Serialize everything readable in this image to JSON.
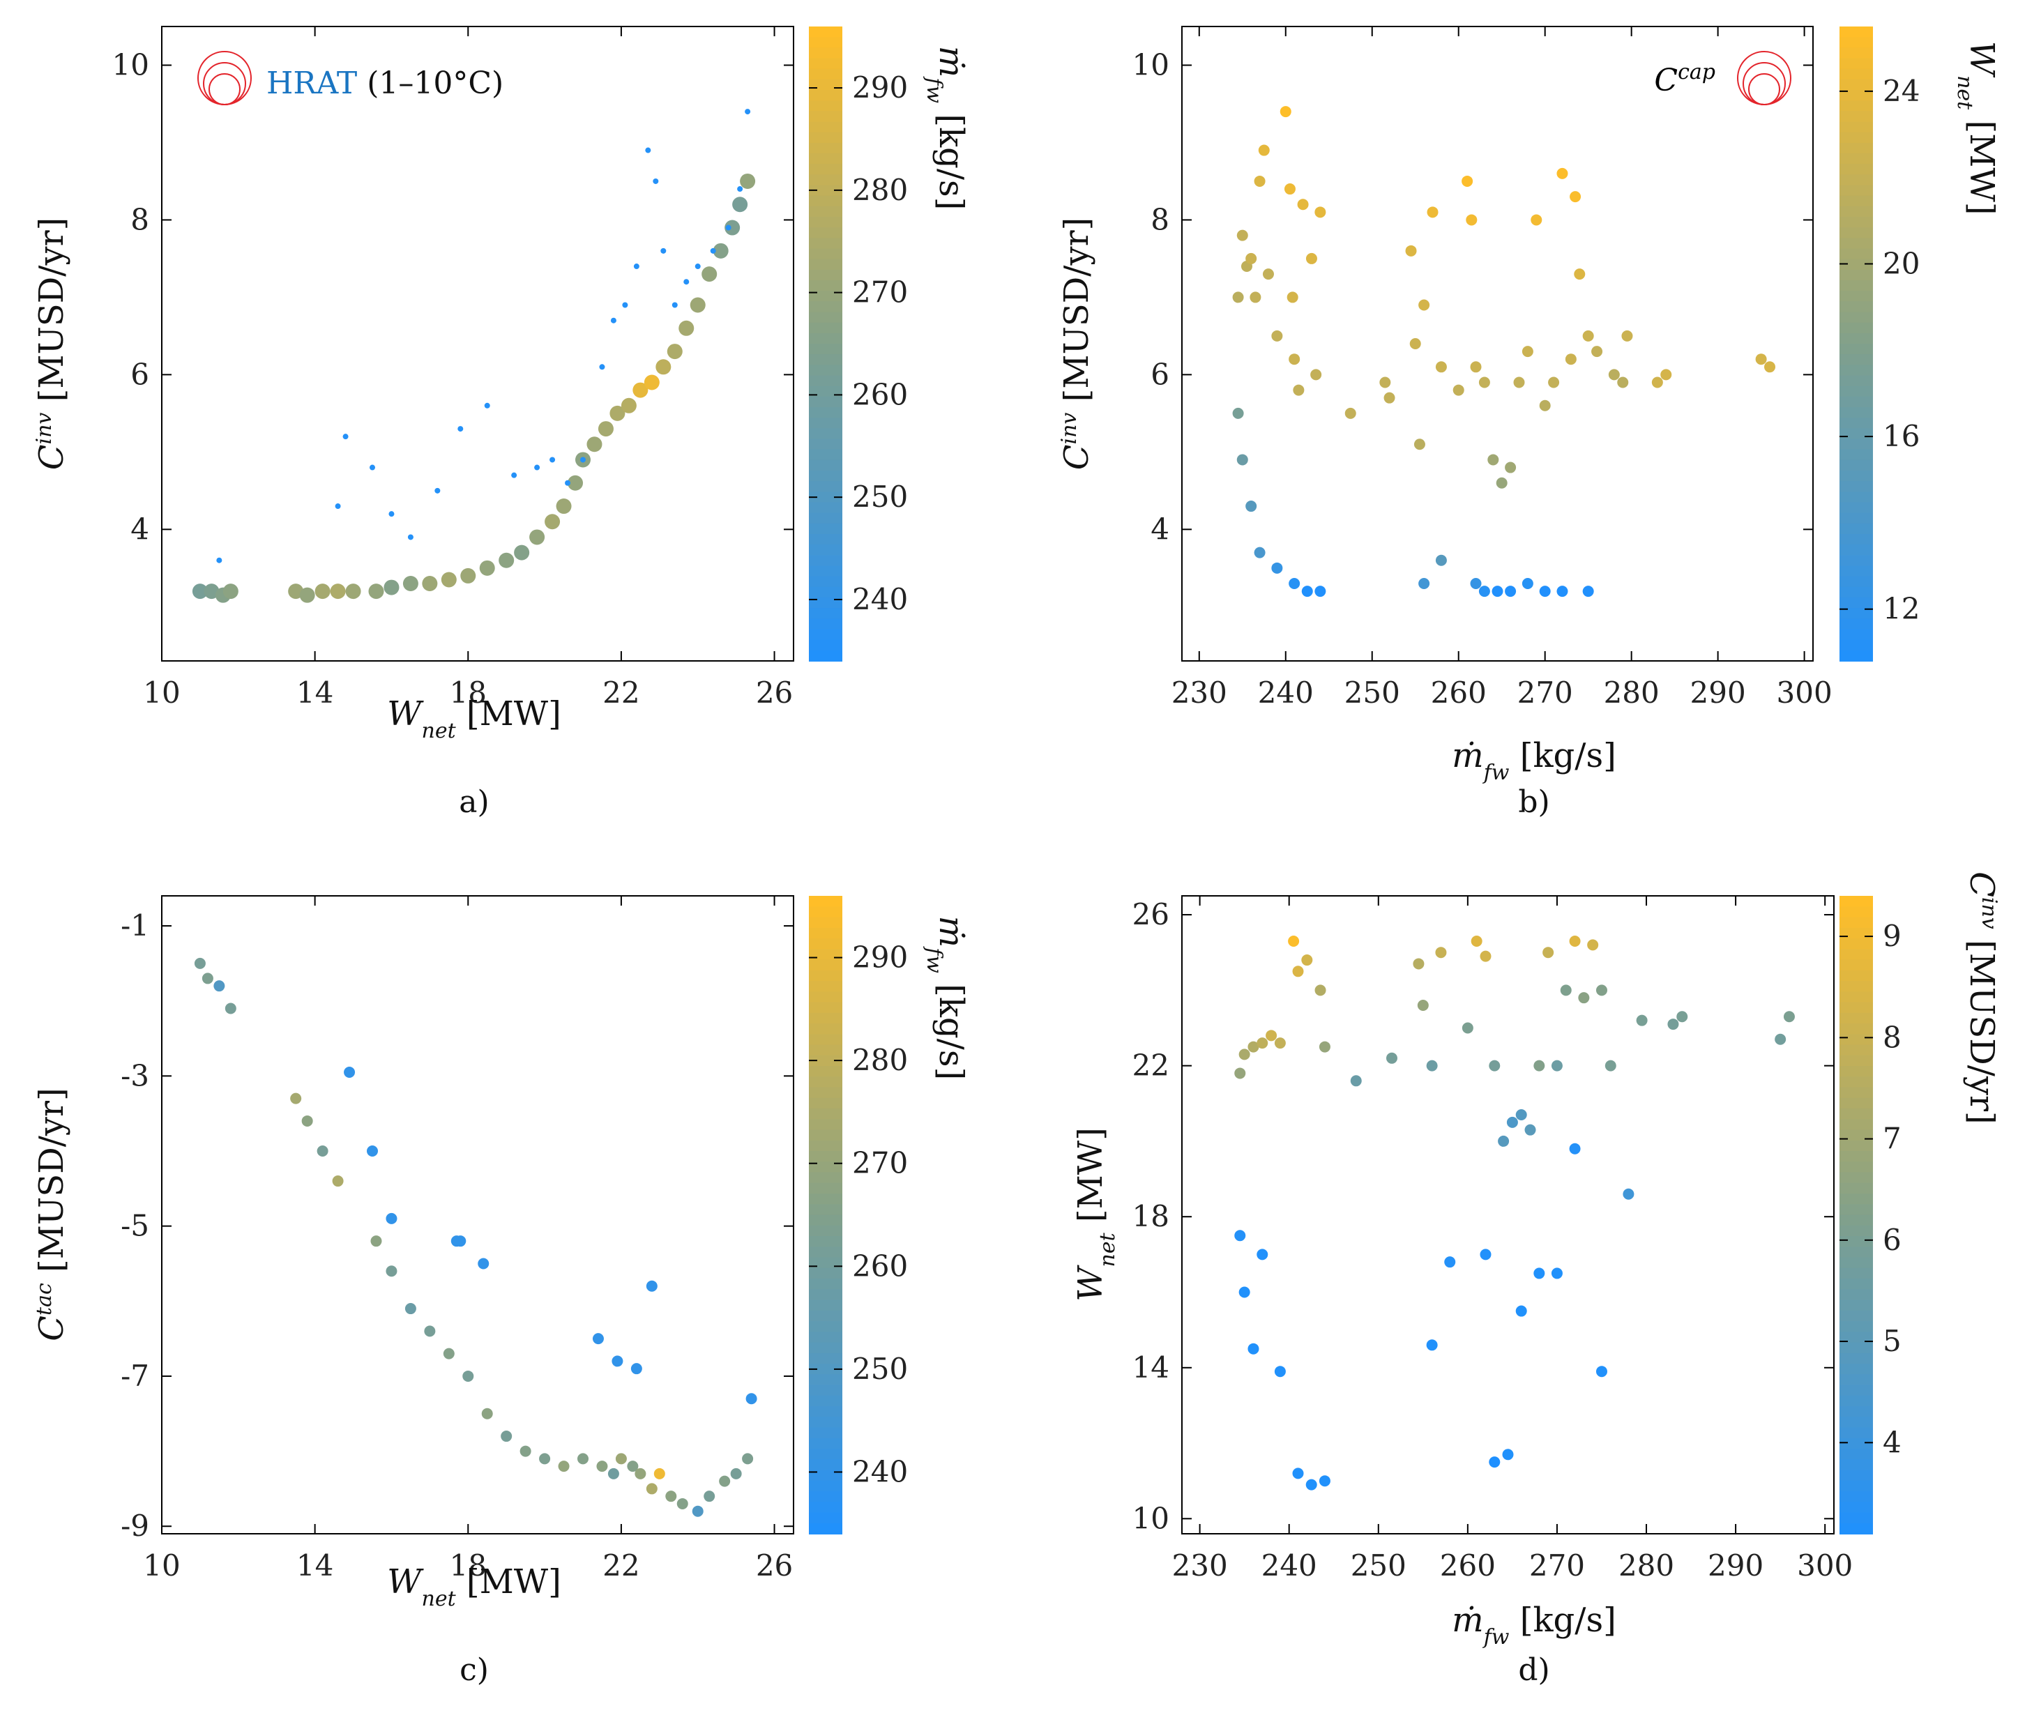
{
  "chart_data": [
    {
      "id": "a",
      "type": "scatter",
      "panel_label": "a)",
      "xlabel": {
        "main": "W",
        "sub": "net",
        "unit": " [MW]"
      },
      "ylabel": {
        "main": "C",
        "sup": "inv",
        "unit": " [MUSD/yr]"
      },
      "xlim": [
        10,
        26.5
      ],
      "ylim": [
        2.3,
        10.5
      ],
      "xticks": [
        10,
        14,
        18,
        22,
        26
      ],
      "yticks": [
        4,
        6,
        8,
        10
      ],
      "colorbar": {
        "label_main": "ṁ",
        "label_sub": "fw",
        "label_unit": " [kg/s]",
        "range": [
          234,
          296
        ],
        "ticks": [
          240,
          250,
          260,
          270,
          280,
          290
        ]
      },
      "annotation": {
        "name": "HRAT",
        "rest": " (1–10°C)",
        "color": "#1a75c2"
      },
      "series": [
        {
          "name": "main",
          "size": "large",
          "x": [
            11.0,
            11.3,
            11.6,
            11.8,
            13.5,
            13.8,
            14.2,
            14.6,
            15.0,
            15.6,
            16.0,
            16.5,
            17.0,
            17.5,
            18.0,
            18.5,
            19.0,
            19.4,
            19.8,
            20.2,
            20.5,
            20.8,
            21.0,
            21.3,
            21.6,
            21.9,
            22.2,
            22.5,
            22.8,
            23.1,
            23.4,
            23.7,
            24.0,
            24.3,
            24.6,
            24.9,
            25.1,
            25.3
          ],
          "y": [
            3.2,
            3.2,
            3.15,
            3.2,
            3.2,
            3.15,
            3.2,
            3.2,
            3.2,
            3.2,
            3.25,
            3.3,
            3.3,
            3.35,
            3.4,
            3.5,
            3.6,
            3.7,
            3.9,
            4.1,
            4.3,
            4.6,
            4.9,
            5.1,
            5.3,
            5.5,
            5.6,
            5.8,
            5.9,
            6.1,
            6.3,
            6.6,
            6.9,
            7.3,
            7.6,
            7.9,
            8.2,
            8.5
          ],
          "c": [
            262,
            264,
            266,
            268,
            272,
            270,
            274,
            276,
            272,
            270,
            266,
            268,
            272,
            274,
            272,
            270,
            268,
            266,
            270,
            274,
            272,
            270,
            268,
            272,
            274,
            276,
            278,
            290,
            292,
            280,
            276,
            274,
            272,
            270,
            266,
            264,
            262,
            270
          ]
        },
        {
          "name": "outliers",
          "size": "small",
          "x": [
            11.5,
            14.6,
            14.8,
            15.5,
            16.0,
            16.5,
            17.2,
            17.8,
            18.5,
            19.2,
            19.8,
            20.2,
            20.6,
            21.0,
            21.5,
            21.8,
            22.1,
            22.4,
            22.7,
            22.9,
            23.1,
            23.4,
            23.7,
            24.0,
            24.4,
            24.8,
            25.1,
            25.3
          ],
          "y": [
            3.6,
            4.3,
            5.2,
            4.8,
            4.2,
            3.9,
            4.5,
            5.3,
            5.6,
            4.7,
            4.8,
            4.9,
            4.6,
            4.9,
            6.1,
            6.7,
            6.9,
            7.4,
            8.9,
            8.5,
            7.6,
            6.9,
            7.2,
            7.4,
            7.6,
            7.9,
            8.4,
            9.4
          ],
          "c": [
            236,
            236,
            236,
            236,
            236,
            236,
            236,
            236,
            236,
            236,
            236,
            236,
            236,
            236,
            236,
            236,
            236,
            236,
            236,
            236,
            236,
            236,
            236,
            236,
            236,
            236,
            236,
            236
          ]
        }
      ]
    },
    {
      "id": "b",
      "type": "scatter",
      "panel_label": "b)",
      "xlabel": {
        "main": "ṁ",
        "sub": "fw",
        "unit": " [kg/s]"
      },
      "ylabel": {
        "main": "C",
        "sup": "inv",
        "unit": " [MUSD/yr]"
      },
      "xlim": [
        228,
        301
      ],
      "ylim": [
        2.3,
        10.5
      ],
      "xticks": [
        230,
        240,
        250,
        260,
        270,
        280,
        290,
        300
      ],
      "yticks": [
        4,
        6,
        8,
        10
      ],
      "colorbar": {
        "label_main": "W",
        "label_sub": "net",
        "label_unit": " [MW]",
        "range": [
          10.8,
          25.5
        ],
        "ticks": [
          12,
          16,
          20,
          24
        ]
      },
      "annotation": {
        "name": "C",
        "sup": "cap"
      },
      "series": [
        {
          "name": "points",
          "size": "medium",
          "x": [
            234.5,
            235.0,
            235.5,
            236.0,
            236.5,
            237.0,
            237.5,
            238.0,
            239.0,
            240.0,
            240.5,
            240.8,
            241.0,
            241.5,
            242.0,
            243.0,
            243.5,
            244.0,
            247.5,
            251.5,
            252.0,
            254.5,
            255.0,
            255.5,
            256.0,
            257.0,
            258.0,
            260.0,
            261.0,
            261.5,
            262.0,
            263.0,
            264.0,
            265.0,
            266.0,
            267.0,
            268.0,
            269.0,
            270.0,
            271.0,
            272.0,
            273.0,
            273.5,
            274.0,
            275.0,
            276.0,
            278.0,
            279.0,
            279.5,
            283.0,
            284.0,
            295.0,
            296.0,
            234.5,
            235.0,
            236.0,
            237.0,
            239.0,
            241.0,
            242.5,
            244.0,
            256.0,
            258.0,
            262.0,
            263.0,
            264.5,
            266.0,
            268.0,
            270.0,
            272.0,
            275.0
          ],
          "y": [
            7.0,
            7.8,
            7.4,
            7.5,
            7.0,
            8.5,
            8.9,
            7.3,
            6.5,
            9.4,
            8.4,
            7.0,
            6.2,
            5.8,
            8.2,
            7.5,
            6.0,
            8.1,
            5.5,
            5.9,
            5.7,
            7.6,
            6.4,
            5.1,
            6.9,
            8.1,
            6.1,
            5.8,
            8.5,
            8.0,
            6.1,
            5.9,
            4.9,
            4.6,
            4.8,
            5.9,
            6.3,
            8.0,
            5.6,
            5.9,
            8.6,
            6.2,
            8.3,
            7.3,
            6.5,
            6.3,
            6.0,
            5.9,
            6.5,
            5.9,
            6.0,
            6.2,
            6.1,
            5.5,
            4.9,
            4.3,
            3.7,
            3.5,
            3.3,
            3.2,
            3.2,
            3.3,
            3.6,
            3.3,
            3.2,
            3.2,
            3.2,
            3.3,
            3.2,
            3.2,
            3.2
          ],
          "c": [
            21.5,
            22.0,
            21.8,
            22.5,
            22.0,
            23.5,
            24.0,
            22.0,
            22.0,
            25.4,
            24.5,
            23.0,
            22.5,
            22.0,
            24.0,
            23.5,
            22.0,
            24.0,
            22.0,
            22.0,
            22.0,
            23.5,
            22.5,
            21.5,
            23.0,
            24.5,
            22.5,
            22.0,
            25.3,
            24.8,
            22.5,
            22.0,
            20.0,
            19.5,
            20.0,
            22.0,
            22.5,
            24.8,
            21.5,
            22.0,
            25.3,
            22.5,
            25.2,
            23.5,
            22.5,
            22.0,
            21.5,
            21.5,
            22.5,
            22.8,
            23.0,
            23.0,
            23.2,
            17.5,
            16.5,
            15.0,
            14.0,
            12.5,
            11.5,
            11.0,
            11.0,
            13.5,
            15.0,
            12.5,
            11.5,
            11.0,
            11.0,
            11.5,
            11.0,
            11.0,
            11.0
          ]
        }
      ]
    },
    {
      "id": "c",
      "type": "scatter",
      "panel_label": "c)",
      "xlabel": {
        "main": "W",
        "sub": "net",
        "unit": " [MW]"
      },
      "ylabel": {
        "main": "C",
        "sup": "tac",
        "unit": " [MUSD/yr]"
      },
      "xlim": [
        10,
        26.5
      ],
      "ylim": [
        -9.1,
        -0.6
      ],
      "xticks": [
        10,
        14,
        18,
        22,
        26
      ],
      "yticks": [
        -9,
        -7,
        -5,
        -3,
        -1
      ],
      "colorbar": {
        "label_main": "ṁ",
        "label_sub": "fw",
        "label_unit": " [kg/s]",
        "range": [
          234,
          296
        ],
        "ticks": [
          240,
          250,
          260,
          270,
          280,
          290
        ]
      },
      "series": [
        {
          "name": "points",
          "size": "medium",
          "x": [
            11.0,
            11.2,
            11.5,
            11.8,
            13.5,
            13.8,
            14.2,
            14.6,
            14.9,
            15.5,
            15.6,
            16.0,
            16.5,
            17.0,
            17.5,
            17.8,
            18.0,
            18.5,
            19.0,
            19.5,
            20.0,
            20.5,
            21.0,
            21.5,
            21.8,
            22.0,
            22.3,
            22.5,
            22.8,
            23.0,
            23.3,
            23.6,
            24.0,
            24.3,
            24.7,
            25.0,
            25.3,
            25.4,
            21.4,
            21.9,
            22.4,
            22.8,
            17.7,
            18.4,
            16.0
          ],
          "y": [
            -1.5,
            -1.7,
            -1.8,
            -2.1,
            -3.3,
            -3.6,
            -4.0,
            -4.4,
            -2.95,
            -4.0,
            -5.2,
            -5.6,
            -6.1,
            -6.4,
            -6.7,
            -5.2,
            -7.0,
            -7.5,
            -7.8,
            -8.0,
            -8.1,
            -8.2,
            -8.1,
            -8.2,
            -8.3,
            -8.1,
            -8.2,
            -8.3,
            -8.5,
            -8.3,
            -8.6,
            -8.7,
            -8.8,
            -8.6,
            -8.4,
            -8.3,
            -8.1,
            -7.3,
            -6.5,
            -6.8,
            -6.9,
            -5.8,
            -5.2,
            -5.5,
            -4.9
          ],
          "c": [
            262,
            264,
            250,
            262,
            274,
            268,
            262,
            276,
            240,
            240,
            268,
            262,
            258,
            262,
            266,
            240,
            262,
            268,
            262,
            266,
            264,
            270,
            266,
            268,
            260,
            272,
            266,
            270,
            276,
            292,
            268,
            266,
            250,
            262,
            266,
            262,
            264,
            240,
            240,
            240,
            240,
            240,
            240,
            240,
            240
          ]
        }
      ]
    },
    {
      "id": "d",
      "type": "scatter",
      "panel_label": "d)",
      "xlabel": {
        "main": "ṁ",
        "sub": "fw",
        "unit": " [kg/s]"
      },
      "ylabel": {
        "main": "W",
        "sub": "net",
        "unit": " [MW]"
      },
      "xlim": [
        228,
        301
      ],
      "ylim": [
        9.6,
        26.5
      ],
      "xticks": [
        230,
        240,
        250,
        260,
        270,
        280,
        290,
        300
      ],
      "yticks": [
        10,
        14,
        18,
        22,
        26
      ],
      "colorbar": {
        "label_main": "C",
        "label_sup": "inv",
        "label_unit": " [MUSD/yr]",
        "range": [
          3.1,
          9.4
        ],
        "ticks": [
          4,
          5,
          6,
          7,
          8,
          9
        ]
      },
      "series": [
        {
          "name": "points",
          "size": "medium",
          "x": [
            234.5,
            235.0,
            236.0,
            237.0,
            238.0,
            239.0,
            240.5,
            241.0,
            242.0,
            243.5,
            244.0,
            247.5,
            251.5,
            254.5,
            255.0,
            256.0,
            257.0,
            260.0,
            261.0,
            262.0,
            263.0,
            264.0,
            265.0,
            266.0,
            267.0,
            268.0,
            269.0,
            270.0,
            271.0,
            272.0,
            273.0,
            274.0,
            275.0,
            276.0,
            278.0,
            279.5,
            283.0,
            284.0,
            295.0,
            296.0,
            234.5,
            235.0,
            236.0,
            237.0,
            239.0,
            241.0,
            242.5,
            244.0,
            256.0,
            258.0,
            262.0,
            263.0,
            264.5,
            266.0,
            268.0,
            270.0,
            272.0,
            275.0
          ],
          "y": [
            21.8,
            22.3,
            22.5,
            22.6,
            22.8,
            22.6,
            25.3,
            24.5,
            24.8,
            24.0,
            22.5,
            21.6,
            22.2,
            24.7,
            23.6,
            22.0,
            25.0,
            23.0,
            25.3,
            24.9,
            22.0,
            20.0,
            20.5,
            20.7,
            20.3,
            22.0,
            25.0,
            22.0,
            24.0,
            25.3,
            23.8,
            25.2,
            24.0,
            22.0,
            18.6,
            23.2,
            23.1,
            23.3,
            22.7,
            23.3,
            17.5,
            16.0,
            14.5,
            17.0,
            13.9,
            11.2,
            10.9,
            11.0,
            14.6,
            16.8,
            17.0,
            11.5,
            11.7,
            15.5,
            16.5,
            16.5,
            19.8,
            13.9
          ],
          "c": [
            6.8,
            7.3,
            7.5,
            7.8,
            8.2,
            7.9,
            9.3,
            8.5,
            8.3,
            7.5,
            6.8,
            5.5,
            5.9,
            7.6,
            6.8,
            5.6,
            8.0,
            6.1,
            8.6,
            8.3,
            5.9,
            4.9,
            4.6,
            4.8,
            5.0,
            6.3,
            8.0,
            5.6,
            6.2,
            8.6,
            6.5,
            8.3,
            6.3,
            6.0,
            4.2,
            6.0,
            5.9,
            6.0,
            5.8,
            6.1,
            3.3,
            3.2,
            3.2,
            3.2,
            3.2,
            3.2,
            3.2,
            3.2,
            3.2,
            3.3,
            3.2,
            3.1,
            3.2,
            3.2,
            3.2,
            3.2,
            3.3,
            3.2
          ]
        }
      ]
    }
  ]
}
